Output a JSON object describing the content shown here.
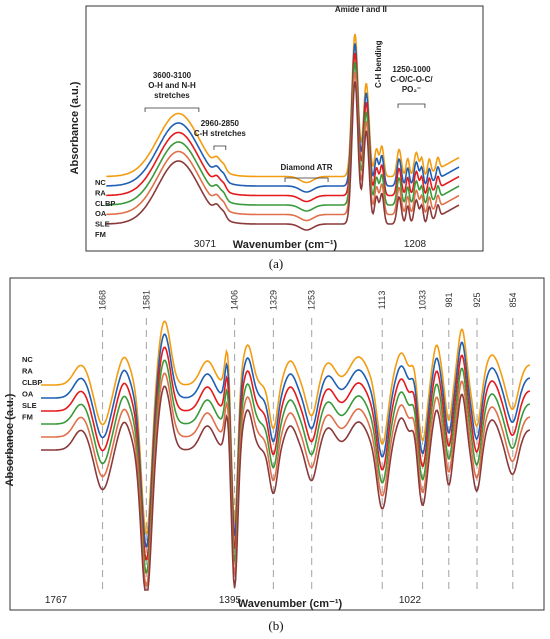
{
  "series_names": [
    "NC",
    "RA",
    "CLBP",
    "OA",
    "SLE",
    "FM"
  ],
  "series_colors": [
    "#f39c12",
    "#1f5fb4",
    "#e41a1c",
    "#3a9a3a",
    "#e0704a",
    "#8b3a3a"
  ],
  "chart_data": [
    {
      "type": "line",
      "panel_label": "(a)",
      "xlabel": "Wavenumber (cm⁻¹)",
      "ylabel": "Absorbance (a.u.)",
      "xlim": [
        4000,
        600
      ],
      "x_ticks": [
        "3071",
        "1208"
      ],
      "x_tick_values": [
        3071,
        1208
      ],
      "grid": false,
      "legend_position": "left",
      "annotations": [
        {
          "lines": [
            "3600-3100",
            "O-H and N-H",
            "stretches"
          ],
          "x_range": [
            3600,
            3100
          ]
        },
        {
          "lines": [
            "2960-2850",
            "C-H stretches"
          ],
          "x_range": [
            2960,
            2850
          ]
        },
        {
          "lines": [
            "Diamond ATR"
          ],
          "x_range": [
            2300,
            1900
          ]
        },
        {
          "lines": [
            "Amide I and II"
          ],
          "x_range": [
            1690,
            1500
          ]
        },
        {
          "lines": [
            "C-H bending"
          ],
          "x_range": [
            1450,
            1440
          ]
        },
        {
          "lines": [
            "1250-1000",
            "C-O/C-O-C/",
            "PO₂⁻"
          ],
          "x_range": [
            1250,
            1000
          ]
        }
      ],
      "series": [
        {
          "name": "NC",
          "offset": 1.0
        },
        {
          "name": "RA",
          "offset": 0.8
        },
        {
          "name": "CLBP",
          "offset": 0.6
        },
        {
          "name": "OA",
          "offset": 0.4
        },
        {
          "name": "SLE",
          "offset": 0.2
        },
        {
          "name": "FM",
          "offset": 0.0
        }
      ]
    },
    {
      "type": "line",
      "panel_label": "(b)",
      "xlabel": "Wavenumber (cm⁻¹)",
      "ylabel": "Absorbance (a.u.)",
      "xlim": [
        1800,
        800
      ],
      "x_ticks": [
        "1767",
        "1395",
        "1022"
      ],
      "x_tick_values": [
        1767,
        1395,
        1022
      ],
      "grid": false,
      "legend_position": "left",
      "marked_peaks": [
        1668,
        1581,
        1406,
        1329,
        1253,
        1113,
        1033,
        981,
        925,
        854
      ],
      "series": [
        {
          "name": "NC",
          "offset": 1.0
        },
        {
          "name": "RA",
          "offset": 0.8
        },
        {
          "name": "CLBP",
          "offset": 0.6
        },
        {
          "name": "OA",
          "offset": 0.4
        },
        {
          "name": "SLE",
          "offset": 0.2
        },
        {
          "name": "FM",
          "offset": 0.0
        }
      ]
    }
  ]
}
